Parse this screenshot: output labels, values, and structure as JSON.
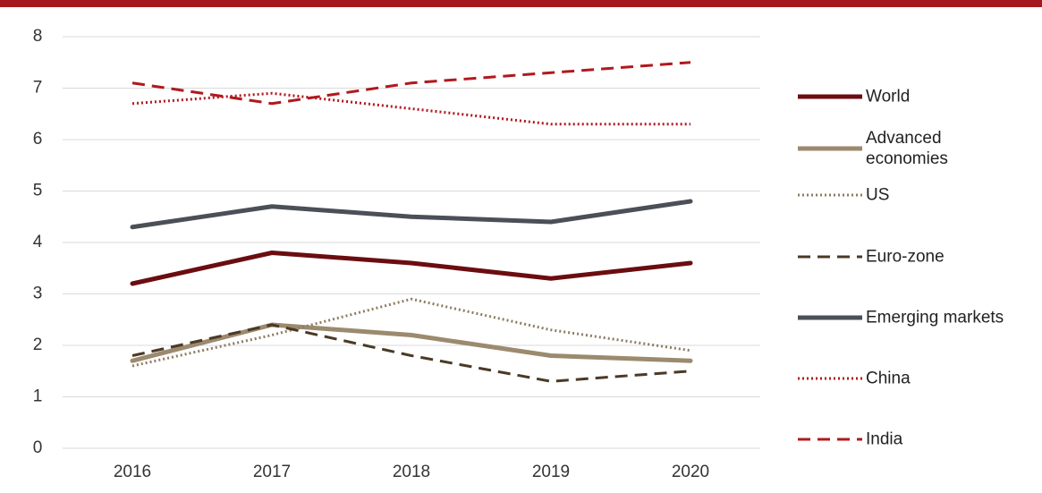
{
  "chart_data": {
    "type": "line",
    "categories": [
      "2016",
      "2017",
      "2018",
      "2019",
      "2020"
    ],
    "series": [
      {
        "name": "World",
        "color": "#6b0d10",
        "style": "solid",
        "values": [
          3.2,
          3.8,
          3.6,
          3.3,
          3.6
        ]
      },
      {
        "name": "Advanced economies",
        "color": "#9c8a6f",
        "style": "solid",
        "values": [
          1.7,
          2.4,
          2.2,
          1.8,
          1.7
        ]
      },
      {
        "name": "US",
        "color": "#8f7c62",
        "style": "dotted",
        "values": [
          1.6,
          2.2,
          2.9,
          2.3,
          1.9
        ]
      },
      {
        "name": "Euro-zone",
        "color": "#4a3a26",
        "style": "dashed",
        "values": [
          1.8,
          2.4,
          1.8,
          1.3,
          1.5
        ]
      },
      {
        "name": "Emerging markets",
        "color": "#4b4f57",
        "style": "solid",
        "values": [
          4.3,
          4.7,
          4.5,
          4.4,
          4.8
        ]
      },
      {
        "name": "China",
        "color": "#b0191e",
        "style": "dotted",
        "values": [
          6.7,
          6.9,
          6.6,
          6.3,
          6.3
        ]
      },
      {
        "name": "India",
        "color": "#b0191e",
        "style": "dashed",
        "values": [
          7.1,
          6.7,
          7.1,
          7.3,
          7.5
        ]
      }
    ],
    "ylim": [
      0,
      8
    ],
    "yticks": [
      0,
      1,
      2,
      3,
      4,
      5,
      6,
      7,
      8
    ],
    "grid": true,
    "legend": "right"
  }
}
